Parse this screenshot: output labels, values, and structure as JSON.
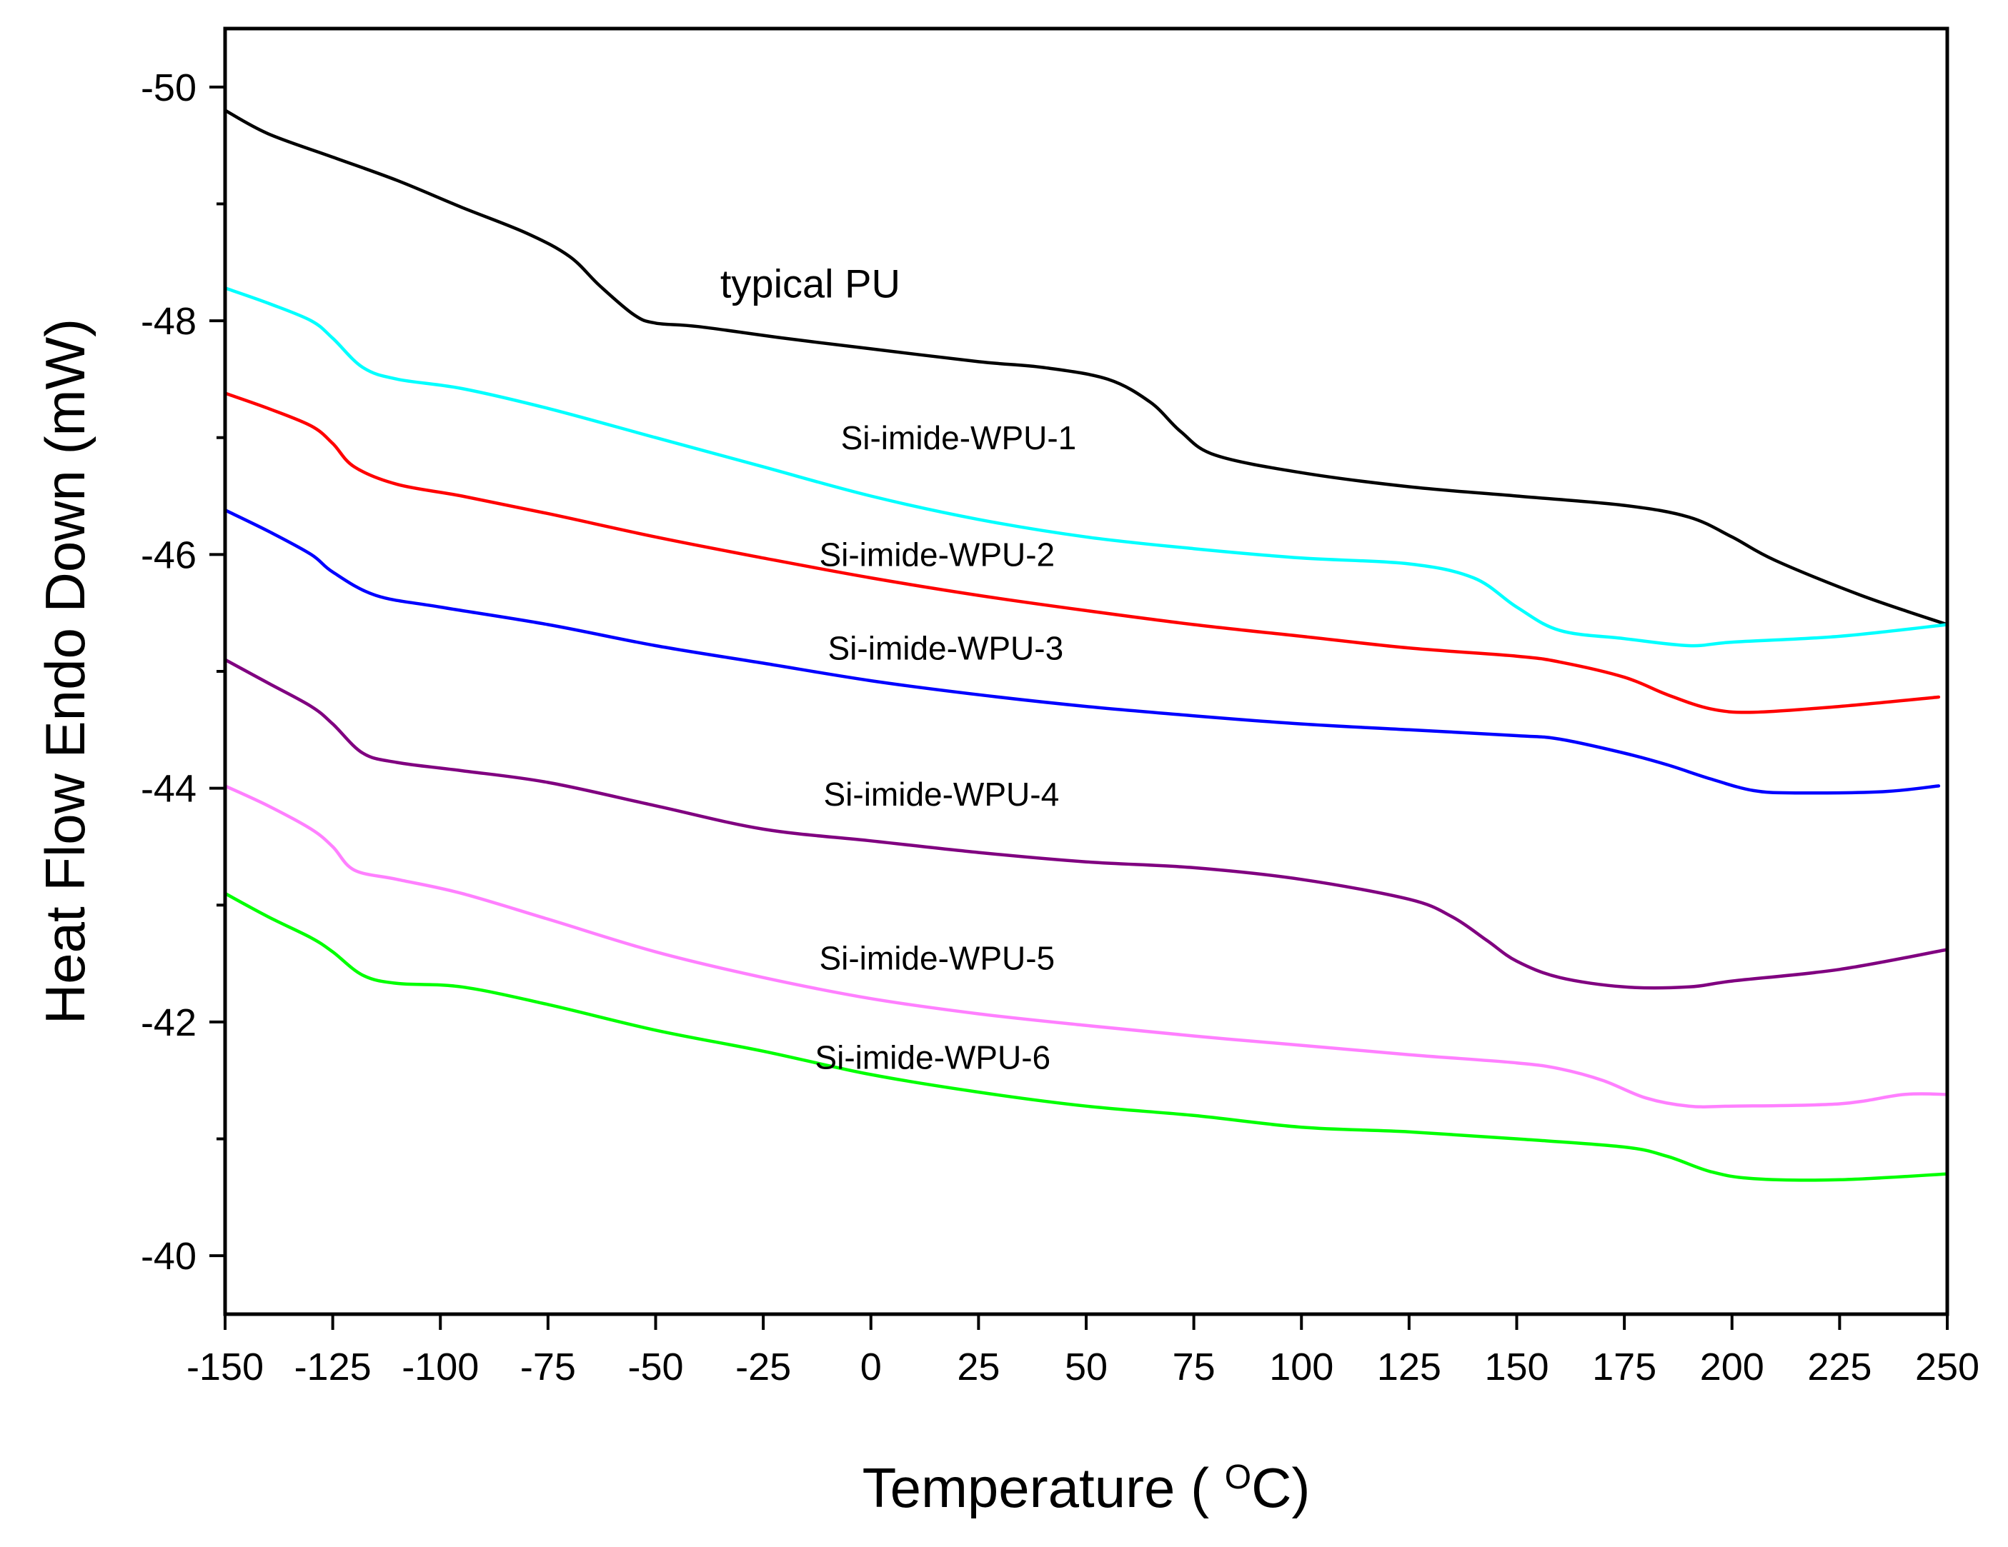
{
  "chart_data": {
    "type": "line",
    "title": "",
    "xlabel": "Temperature ( ",
    "xlabel_sup": "O",
    "xlabel_unit": "C)",
    "ylabel": "Heat Flow Endo Down (mW)",
    "xlim": [
      -150,
      250
    ],
    "ylim": [
      -50.5,
      -39.5
    ],
    "y_inverted": true,
    "x_ticks": [
      -150,
      -125,
      -100,
      -75,
      -50,
      -25,
      0,
      25,
      50,
      75,
      100,
      125,
      150,
      175,
      200,
      225,
      250
    ],
    "x_tick_labels": [
      "-150",
      "-125",
      "-100",
      "-75",
      "-50",
      "-25",
      "0",
      "25",
      "50",
      "75",
      "100",
      "125",
      "150",
      "175",
      "200",
      "225",
      "250"
    ],
    "y_ticks": [
      -50,
      -48,
      -46,
      -44,
      -42,
      -40
    ],
    "y_tick_labels": [
      "-50",
      "-48",
      "-46",
      "-44",
      "-42",
      "-40"
    ],
    "grid": false,
    "series": [
      {
        "name": "typical PU",
        "color": "#000000",
        "label_at": [
          -35,
          -48.2
        ],
        "points": [
          [
            -150,
            -49.8
          ],
          [
            -140,
            -49.6
          ],
          [
            -125,
            -49.4
          ],
          [
            -110,
            -49.2
          ],
          [
            -95,
            -48.97
          ],
          [
            -80,
            -48.75
          ],
          [
            -70,
            -48.55
          ],
          [
            -63,
            -48.3
          ],
          [
            -55,
            -48.05
          ],
          [
            -50,
            -47.98
          ],
          [
            -40,
            -47.95
          ],
          [
            -20,
            -47.85
          ],
          [
            0,
            -47.76
          ],
          [
            25,
            -47.65
          ],
          [
            40,
            -47.6
          ],
          [
            55,
            -47.5
          ],
          [
            65,
            -47.3
          ],
          [
            72,
            -47.05
          ],
          [
            80,
            -46.85
          ],
          [
            100,
            -46.7
          ],
          [
            125,
            -46.58
          ],
          [
            150,
            -46.5
          ],
          [
            175,
            -46.42
          ],
          [
            190,
            -46.32
          ],
          [
            200,
            -46.15
          ],
          [
            210,
            -45.95
          ],
          [
            230,
            -45.65
          ],
          [
            250,
            -45.4
          ]
        ]
      },
      {
        "name": "Si-imide-WPU-1",
        "color": "#00FFFF",
        "label_at": [
          -7,
          -46.9
        ],
        "points": [
          [
            -150,
            -48.28
          ],
          [
            -140,
            -48.15
          ],
          [
            -130,
            -48.0
          ],
          [
            -125,
            -47.85
          ],
          [
            -118,
            -47.6
          ],
          [
            -110,
            -47.5
          ],
          [
            -95,
            -47.42
          ],
          [
            -75,
            -47.25
          ],
          [
            -50,
            -47.0
          ],
          [
            -25,
            -46.75
          ],
          [
            0,
            -46.5
          ],
          [
            25,
            -46.3
          ],
          [
            50,
            -46.15
          ],
          [
            75,
            -46.05
          ],
          [
            100,
            -45.97
          ],
          [
            125,
            -45.92
          ],
          [
            140,
            -45.8
          ],
          [
            150,
            -45.55
          ],
          [
            160,
            -45.35
          ],
          [
            175,
            -45.28
          ],
          [
            190,
            -45.22
          ],
          [
            200,
            -45.25
          ],
          [
            225,
            -45.3
          ],
          [
            250,
            -45.4
          ]
        ]
      },
      {
        "name": "Si-imide-WPU-2",
        "color": "#FF0000",
        "label_at": [
          -12,
          -45.9
        ],
        "points": [
          [
            -150,
            -47.38
          ],
          [
            -140,
            -47.25
          ],
          [
            -130,
            -47.1
          ],
          [
            -125,
            -46.95
          ],
          [
            -120,
            -46.75
          ],
          [
            -110,
            -46.6
          ],
          [
            -95,
            -46.5
          ],
          [
            -75,
            -46.35
          ],
          [
            -50,
            -46.15
          ],
          [
            -25,
            -45.97
          ],
          [
            0,
            -45.8
          ],
          [
            25,
            -45.65
          ],
          [
            50,
            -45.52
          ],
          [
            75,
            -45.4
          ],
          [
            100,
            -45.3
          ],
          [
            125,
            -45.2
          ],
          [
            150,
            -45.13
          ],
          [
            160,
            -45.08
          ],
          [
            175,
            -44.95
          ],
          [
            185,
            -44.8
          ],
          [
            195,
            -44.68
          ],
          [
            205,
            -44.65
          ],
          [
            225,
            -44.7
          ],
          [
            248,
            -44.78
          ]
        ]
      },
      {
        "name": "Si-imide-WPU-3",
        "color": "#0000FF",
        "label_at": [
          -10,
          -45.1
        ],
        "points": [
          [
            -150,
            -46.38
          ],
          [
            -140,
            -46.2
          ],
          [
            -130,
            -46.0
          ],
          [
            -125,
            -45.85
          ],
          [
            -115,
            -45.65
          ],
          [
            -100,
            -45.55
          ],
          [
            -75,
            -45.4
          ],
          [
            -50,
            -45.22
          ],
          [
            -25,
            -45.07
          ],
          [
            0,
            -44.92
          ],
          [
            25,
            -44.8
          ],
          [
            50,
            -44.7
          ],
          [
            75,
            -44.62
          ],
          [
            100,
            -44.55
          ],
          [
            125,
            -44.5
          ],
          [
            150,
            -44.45
          ],
          [
            160,
            -44.42
          ],
          [
            175,
            -44.3
          ],
          [
            185,
            -44.2
          ],
          [
            195,
            -44.08
          ],
          [
            205,
            -43.98
          ],
          [
            215,
            -43.96
          ],
          [
            235,
            -43.97
          ],
          [
            248,
            -44.02
          ]
        ]
      },
      {
        "name": "Si-imide-WPU-4",
        "color": "#800080",
        "label_at": [
          -11,
          -43.85
        ],
        "points": [
          [
            -150,
            -45.1
          ],
          [
            -140,
            -44.9
          ],
          [
            -130,
            -44.7
          ],
          [
            -125,
            -44.55
          ],
          [
            -118,
            -44.3
          ],
          [
            -110,
            -44.22
          ],
          [
            -95,
            -44.15
          ],
          [
            -75,
            -44.05
          ],
          [
            -50,
            -43.85
          ],
          [
            -25,
            -43.65
          ],
          [
            0,
            -43.55
          ],
          [
            25,
            -43.45
          ],
          [
            50,
            -43.37
          ],
          [
            75,
            -43.32
          ],
          [
            100,
            -43.22
          ],
          [
            125,
            -43.05
          ],
          [
            135,
            -42.9
          ],
          [
            143,
            -42.7
          ],
          [
            150,
            -42.52
          ],
          [
            160,
            -42.38
          ],
          [
            175,
            -42.3
          ],
          [
            190,
            -42.3
          ],
          [
            200,
            -42.35
          ],
          [
            225,
            -42.45
          ],
          [
            250,
            -42.62
          ]
        ]
      },
      {
        "name": "Si-imide-WPU-5",
        "color": "#FF80FF",
        "label_at": [
          -12,
          -42.45
        ],
        "points": [
          [
            -150,
            -44.02
          ],
          [
            -140,
            -43.85
          ],
          [
            -130,
            -43.65
          ],
          [
            -125,
            -43.5
          ],
          [
            -120,
            -43.3
          ],
          [
            -110,
            -43.22
          ],
          [
            -95,
            -43.1
          ],
          [
            -75,
            -42.88
          ],
          [
            -50,
            -42.6
          ],
          [
            -25,
            -42.38
          ],
          [
            0,
            -42.2
          ],
          [
            25,
            -42.07
          ],
          [
            50,
            -41.97
          ],
          [
            75,
            -41.88
          ],
          [
            100,
            -41.8
          ],
          [
            125,
            -41.72
          ],
          [
            150,
            -41.65
          ],
          [
            160,
            -41.6
          ],
          [
            170,
            -41.5
          ],
          [
            180,
            -41.35
          ],
          [
            190,
            -41.28
          ],
          [
            200,
            -41.28
          ],
          [
            225,
            -41.3
          ],
          [
            240,
            -41.38
          ],
          [
            250,
            -41.38
          ]
        ]
      },
      {
        "name": "Si-imide-WPU-6",
        "color": "#00FF00",
        "label_at": [
          -13,
          -41.6
        ],
        "points": [
          [
            -150,
            -43.1
          ],
          [
            -140,
            -42.9
          ],
          [
            -130,
            -42.72
          ],
          [
            -125,
            -42.6
          ],
          [
            -118,
            -42.4
          ],
          [
            -110,
            -42.33
          ],
          [
            -95,
            -42.3
          ],
          [
            -75,
            -42.15
          ],
          [
            -50,
            -41.93
          ],
          [
            -25,
            -41.75
          ],
          [
            0,
            -41.55
          ],
          [
            25,
            -41.4
          ],
          [
            50,
            -41.28
          ],
          [
            75,
            -41.2
          ],
          [
            100,
            -41.1
          ],
          [
            125,
            -41.06
          ],
          [
            150,
            -41.0
          ],
          [
            175,
            -40.93
          ],
          [
            185,
            -40.85
          ],
          [
            195,
            -40.72
          ],
          [
            205,
            -40.66
          ],
          [
            225,
            -40.65
          ],
          [
            250,
            -40.7
          ]
        ]
      }
    ]
  }
}
